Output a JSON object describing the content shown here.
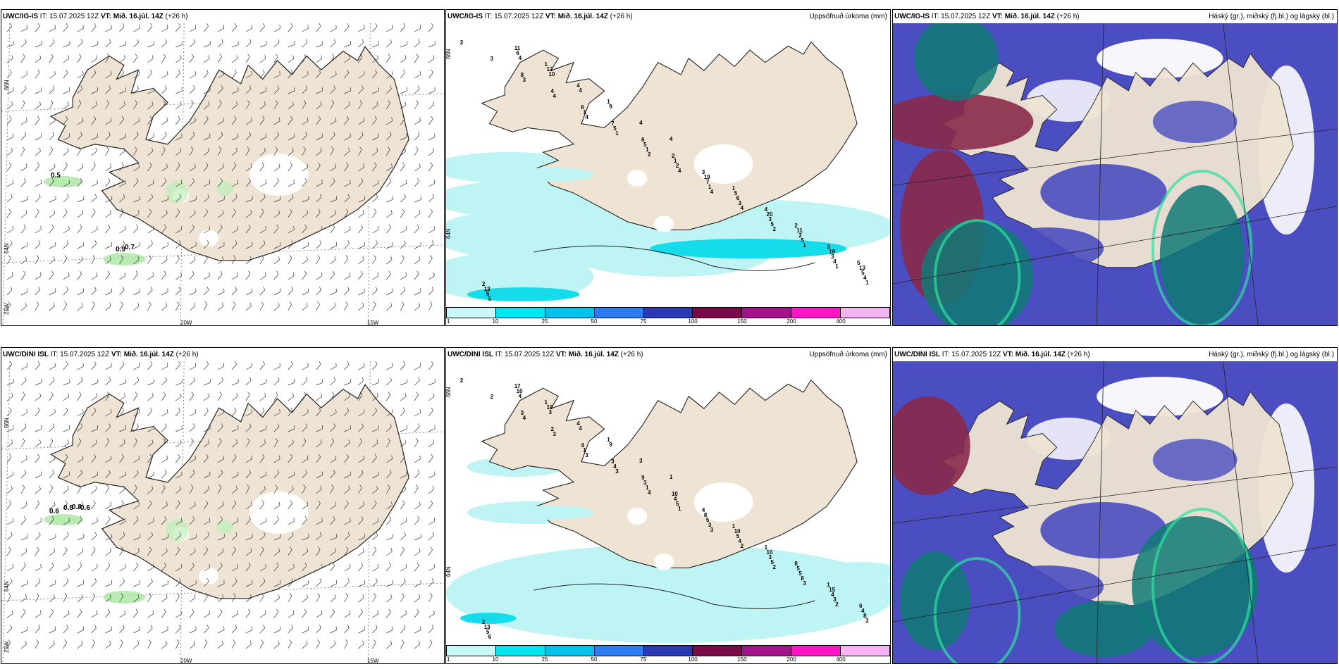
{
  "rows": [
    {
      "id": "uwc-ig-is",
      "wind": {
        "title": "UWC/IG-IS",
        "info": "IT: 15.07.2025 12Z",
        "vt_label": "VT:",
        "vt": "Mið. 16.júl. 14Z",
        "lead": "(+26 h)",
        "lon_labels": [
          "20W",
          "15W"
        ],
        "lat_labels": [
          "66N",
          "64N",
          "25W"
        ],
        "contour_labels": [
          "0.5",
          "0.9",
          "0.7"
        ]
      },
      "precip": {
        "title": "UWC/IG-IS",
        "info": "IT: 15.07.2025 12Z",
        "vt_label": "VT:",
        "vt": "Mið. 16.júl. 14Z",
        "lead": "(+26 h)",
        "right_title": "Uppsöfnuð úrkoma (mm)",
        "lat_labels": [
          "66N",
          "64N"
        ],
        "values": [
          "2",
          "3",
          "4",
          "2",
          "4",
          "2",
          "1",
          "3",
          "4",
          "1",
          "4",
          "4",
          "1",
          "1",
          "8",
          "1",
          "1",
          "1",
          "5",
          "4",
          "5",
          "4",
          "5",
          "2",
          "3",
          "5",
          "4",
          "4",
          "6",
          "5",
          "7",
          "3",
          "3",
          "5",
          "10",
          "7",
          "1",
          "6",
          "2",
          "5",
          "6",
          "4",
          "6",
          "19",
          "20",
          "18",
          "13",
          "12",
          "9",
          "2",
          "5",
          "11",
          "13",
          "11",
          "4",
          "4",
          "3",
          "4",
          "3",
          "2",
          "1",
          "1",
          "4",
          "1",
          "2",
          "5"
        ]
      },
      "cloud": {
        "title": "UWC/IG-IS",
        "info": "IT: 15.07.2025 12Z",
        "vt_label": "VT:",
        "vt": "Mið. 16.júl. 14Z",
        "lead": "(+26 h)",
        "right_title": "Háský (gr.), miðský (fj.bl.) og lágský (bl.)"
      }
    },
    {
      "id": "uwc-dini-isl",
      "wind": {
        "title": "UWC/DINI ISL",
        "info": "IT: 15.07.2025 12Z",
        "vt_label": "VT:",
        "vt": "Mið. 16.júl. 14Z",
        "lead": "(+26 h)",
        "lon_labels": [
          "20W",
          "15W"
        ],
        "lat_labels": [
          "66N",
          "64N",
          "25W"
        ],
        "contour_labels": [
          "0.6",
          "0.8",
          "0.8",
          "0.6"
        ]
      },
      "precip": {
        "title": "UWC/DINI ISL",
        "info": "IT: 15.07.2025 12Z",
        "vt_label": "VT:",
        "vt": "Mið. 16.júl. 14Z",
        "lead": "(+26 h)",
        "right_title": "Uppsöfnuð úrkoma (mm)",
        "lat_labels": [
          "66N",
          "64N"
        ],
        "values": [
          "2",
          "4",
          "3",
          "4",
          "3",
          "2",
          "2",
          "2",
          "3",
          "3",
          "1",
          "2",
          "3",
          "3",
          "3",
          "1",
          "1",
          "3",
          "5",
          "3",
          "6",
          "2",
          "4",
          "5",
          "4",
          "8",
          "8",
          "4",
          "4",
          "3",
          "5",
          "3",
          "4",
          "5",
          "3",
          "3",
          "4",
          "5",
          "5",
          "4",
          "10",
          "4",
          "9",
          "8",
          "10",
          "15",
          "13",
          "10",
          "9",
          "10",
          "10",
          "5",
          "6",
          "17",
          "4",
          "3",
          "4",
          "1",
          "1",
          "2",
          "1",
          "1",
          "1",
          "1",
          "8"
        ]
      },
      "cloud": {
        "title": "UWC/DINI ISL",
        "info": "IT: 15.07.2025 12Z",
        "vt_label": "VT:",
        "vt": "Mið. 16.júl. 14Z",
        "lead": "(+26 h)",
        "right_title": "Háský (gr.), miðský (fj.bl.) og lágský (bl.)"
      }
    }
  ],
  "colorbar": {
    "ticks": [
      "1",
      "10",
      "25",
      "50",
      "75",
      "100",
      "150",
      "200",
      "400"
    ],
    "colors": [
      "#c8f7f7",
      "#00e8ef",
      "#00c3ec",
      "#2b7cf0",
      "#2a3ab5",
      "#7a0a4a",
      "#a3148a",
      "#ff14c8",
      "#f7b4f5"
    ]
  },
  "colors": {
    "land": "#efe4d3",
    "sea": "#ffffff",
    "cloud_blue": "#4a4ec0",
    "cloud_high": "#8a2a4a",
    "cloud_low": "#0f7a75",
    "precip_light": "#bff4f4",
    "precip_mid": "#14dcea"
  }
}
